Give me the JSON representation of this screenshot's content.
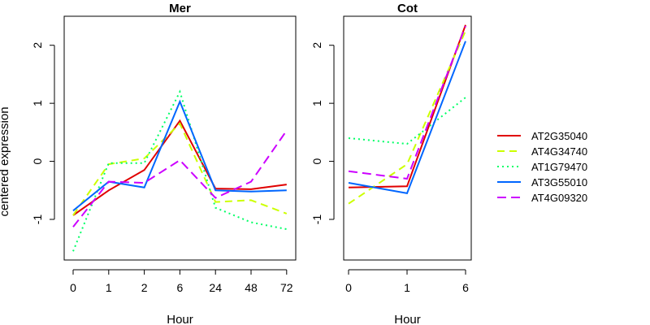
{
  "chart_data": {
    "type": "line",
    "ylabel": "centered expression",
    "legend_position": "right",
    "grid": false,
    "series_styles": [
      {
        "name": "AT2G35040",
        "color": "#e00000",
        "dash": "solid"
      },
      {
        "name": "AT4G34740",
        "color": "#ccff00",
        "dash": "dashed"
      },
      {
        "name": "AT1G79470",
        "color": "#00ff66",
        "dash": "dotted"
      },
      {
        "name": "AT3G55010",
        "color": "#0066ff",
        "dash": "dotdash"
      },
      {
        "name": "AT4G09320",
        "color": "#cc00ff",
        "dash": "longdash"
      }
    ],
    "panels": [
      {
        "title": "Mer",
        "xlabel": "Hour",
        "categories": [
          "0",
          "1",
          "2",
          "6",
          "24",
          "48",
          "72"
        ],
        "ylim": [
          -1.7,
          2.5
        ],
        "yticks": [
          -1,
          0,
          1,
          2
        ],
        "series": [
          {
            "name": "AT2G35040",
            "values": [
              -0.93,
              -0.5,
              -0.15,
              0.7,
              -0.47,
              -0.48,
              -0.4
            ]
          },
          {
            "name": "AT4G34740",
            "values": [
              -0.93,
              -0.05,
              0.05,
              0.65,
              -0.7,
              -0.67,
              -0.9
            ]
          },
          {
            "name": "AT1G79470",
            "values": [
              -1.55,
              -0.03,
              -0.03,
              1.2,
              -0.8,
              -1.05,
              -1.17
            ]
          },
          {
            "name": "AT3G55010",
            "values": [
              -0.85,
              -0.35,
              -0.45,
              1.03,
              -0.5,
              -0.52,
              -0.5
            ]
          },
          {
            "name": "AT4G09320",
            "values": [
              -1.13,
              -0.35,
              -0.37,
              0.02,
              -0.63,
              -0.35,
              0.53
            ]
          }
        ]
      },
      {
        "title": "Cot",
        "xlabel": "Hour",
        "categories": [
          "0",
          "1",
          "6"
        ],
        "ylim": [
          -1.7,
          2.5
        ],
        "yticks": [
          -1,
          0,
          1,
          2
        ],
        "series": [
          {
            "name": "AT2G35040",
            "values": [
              -0.45,
              -0.43,
              2.35
            ]
          },
          {
            "name": "AT4G34740",
            "values": [
              -0.73,
              -0.05,
              2.25
            ]
          },
          {
            "name": "AT1G79470",
            "values": [
              0.4,
              0.3,
              1.1
            ]
          },
          {
            "name": "AT3G55010",
            "values": [
              -0.37,
              -0.55,
              2.07
            ]
          },
          {
            "name": "AT4G09320",
            "values": [
              -0.17,
              -0.3,
              2.33
            ]
          }
        ]
      }
    ]
  }
}
